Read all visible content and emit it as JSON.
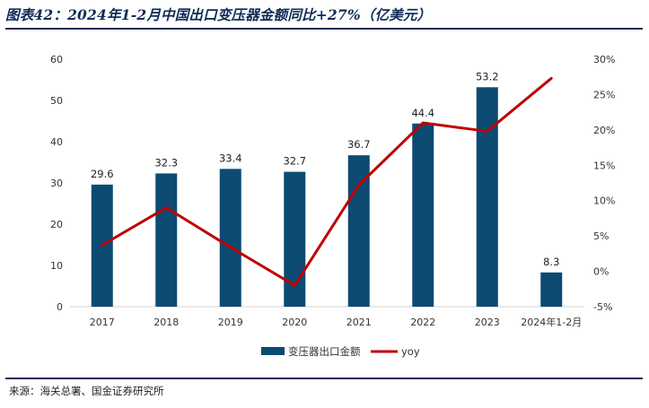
{
  "title": "图表42：2024年1-2月中国出口变压器金额同比+27%（亿美元）",
  "source": "来源：海关总署、国金证券研究所",
  "chart_data": {
    "type": "bar+line",
    "categories": [
      "2017",
      "2018",
      "2019",
      "2020",
      "2021",
      "2022",
      "2023",
      "2024年1-2月"
    ],
    "series": [
      {
        "name": "变压器出口金额",
        "type": "bar",
        "axis": "left",
        "color": "#0c4a72",
        "values": [
          29.6,
          32.3,
          33.4,
          32.7,
          36.7,
          44.4,
          53.2,
          8.3
        ],
        "data_labels": [
          "29.6",
          "32.3",
          "33.4",
          "32.7",
          "36.7",
          "44.4",
          "53.2",
          "8.3"
        ]
      },
      {
        "name": "yoy",
        "type": "line",
        "axis": "right",
        "color": "#c00000",
        "values": [
          3.7,
          9.0,
          3.4,
          -2.0,
          12.2,
          21.0,
          19.8,
          27.3
        ]
      }
    ],
    "y_left": {
      "min": 0,
      "max": 60,
      "ticks": [
        0,
        10,
        20,
        30,
        40,
        50,
        60
      ],
      "tick_labels": [
        "0",
        "10",
        "20",
        "30",
        "40",
        "50",
        "60"
      ]
    },
    "y_right": {
      "min": -5,
      "max": 30,
      "ticks": [
        -5,
        0,
        5,
        10,
        15,
        20,
        25,
        30
      ],
      "tick_labels": [
        "-5%",
        "0%",
        "5%",
        "10%",
        "15%",
        "20%",
        "25%",
        "30%"
      ]
    },
    "grid": false,
    "legend": {
      "position": "bottom-center"
    }
  }
}
